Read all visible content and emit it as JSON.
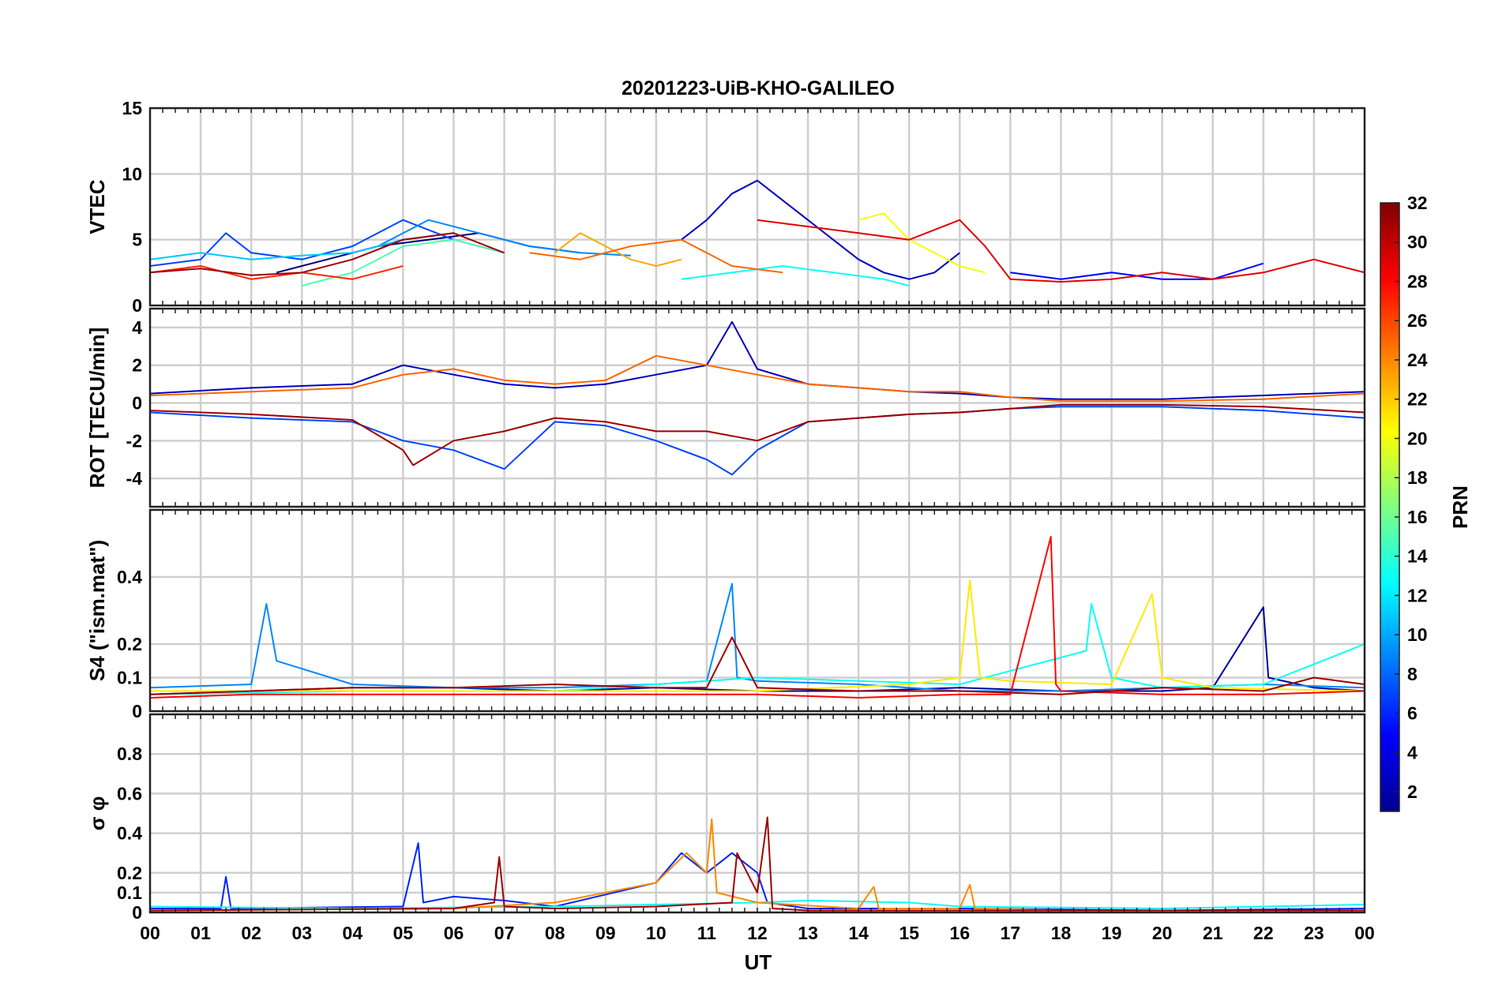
{
  "chart_data": {
    "type": "line",
    "title": "20201223-UiB-KHO-GALILEO",
    "xlabel": "UT",
    "x_ticks": [
      "00",
      "01",
      "02",
      "03",
      "04",
      "05",
      "06",
      "07",
      "08",
      "09",
      "10",
      "11",
      "12",
      "13",
      "14",
      "15",
      "16",
      "17",
      "18",
      "19",
      "20",
      "21",
      "22",
      "23",
      "00"
    ],
    "x_range_hours": [
      0,
      24
    ],
    "grid": true,
    "colorbar": {
      "label": "PRN",
      "range": [
        1,
        32
      ],
      "ticks": [
        "2",
        "4",
        "6",
        "8",
        "10",
        "12",
        "14",
        "16",
        "18",
        "20",
        "22",
        "24",
        "26",
        "28",
        "30",
        "32"
      ],
      "colormap": "jet"
    },
    "panels": [
      {
        "id": "vtec",
        "ylabel": "VTEC",
        "ylim": [
          0,
          15
        ],
        "yticks": [
          0,
          5,
          10,
          15
        ],
        "series": [
          {
            "prn": 1,
            "x": [
              2.5,
              3.5,
              4.5,
              5.5,
              6.5,
              7.5,
              8.5
            ],
            "y": [
              2.5,
              3.5,
              4.5,
              5,
              5.5,
              4.5,
              4
            ]
          },
          {
            "prn": 3,
            "x": [
              10.5,
              11.0,
              11.5,
              12.0,
              12.5,
              13.0,
              13.5,
              14.0,
              14.5,
              15.0,
              15.5,
              16.0
            ],
            "y": [
              5.0,
              6.5,
              8.5,
              9.5,
              8.0,
              6.5,
              5.0,
              3.5,
              2.5,
              2.0,
              2.5,
              4.0
            ]
          },
          {
            "prn": 5,
            "x": [
              17.0,
              18.0,
              19.0,
              20.0,
              21.0,
              22.0
            ],
            "y": [
              2.5,
              2.0,
              2.5,
              2.0,
              2.0,
              3.2
            ]
          },
          {
            "prn": 7,
            "x": [
              0.0,
              1.0,
              1.5,
              2.0,
              3.0,
              4.0,
              5.0,
              6.0,
              7.0
            ],
            "y": [
              3.0,
              3.5,
              5.5,
              4.0,
              3.5,
              4.5,
              6.5,
              5.0,
              4.0
            ]
          },
          {
            "prn": 9,
            "x": [
              4.5,
              5.5,
              6.5,
              7.5,
              8.5,
              9.5
            ],
            "y": [
              4.5,
              6.5,
              5.5,
              4.5,
              4.0,
              3.8
            ]
          },
          {
            "prn": 11,
            "x": [
              0.0,
              1.0,
              2.0,
              3.0,
              4.0,
              5.0,
              6.0
            ],
            "y": [
              3.5,
              4.0,
              3.5,
              3.8,
              4.0,
              5.0,
              5.5
            ]
          },
          {
            "prn": 13,
            "x": [
              10.5,
              11.5,
              12.5,
              13.5,
              14.5,
              15.0
            ],
            "y": [
              2.0,
              2.5,
              3.0,
              2.5,
              2.0,
              1.5
            ]
          },
          {
            "prn": 15,
            "x": [
              3.0,
              4.0,
              5.0,
              6.0,
              7.0
            ],
            "y": [
              1.5,
              2.5,
              4.5,
              5.0,
              4.0
            ]
          },
          {
            "prn": 20,
            "x": [
              14.0,
              14.5,
              15.0,
              15.5,
              16.0,
              16.5
            ],
            "y": [
              6.5,
              7.0,
              5.0,
              4.0,
              3.0,
              2.5
            ]
          },
          {
            "prn": 23,
            "x": [
              8.0,
              8.5,
              9.0,
              9.5,
              10.0,
              10.5
            ],
            "y": [
              4.0,
              5.5,
              4.5,
              3.5,
              3.0,
              3.5
            ]
          },
          {
            "prn": 25,
            "x": [
              7.5,
              8.5,
              9.5,
              10.5,
              11.5,
              12.5
            ],
            "y": [
              4.0,
              3.5,
              4.5,
              5.0,
              3.0,
              2.5
            ]
          },
          {
            "prn": 27,
            "x": [
              0.0,
              1.0,
              2.0,
              3.0,
              4.0,
              5.0
            ],
            "y": [
              2.5,
              3.0,
              2.0,
              2.5,
              2.0,
              3.0
            ]
          },
          {
            "prn": 29,
            "x": [
              12.0,
              13.0,
              14.0,
              15.0,
              16.0,
              16.5,
              17.0,
              18.0,
              19.0,
              20.0,
              21.0,
              22.0,
              23.0,
              24.0
            ],
            "y": [
              6.5,
              6.0,
              5.5,
              5.0,
              6.5,
              4.5,
              2.0,
              1.8,
              2.0,
              2.5,
              2.0,
              2.5,
              3.5,
              2.5
            ]
          },
          {
            "prn": 31,
            "x": [
              0.0,
              1.0,
              2.0,
              3.0,
              4.0,
              5.0,
              6.0,
              7.0
            ],
            "y": [
              2.5,
              2.8,
              2.3,
              2.5,
              3.5,
              5.0,
              5.5,
              4.0
            ]
          }
        ]
      },
      {
        "id": "rot",
        "ylabel": "ROT [TECU/min]",
        "ylim": [
          -5.5,
          5
        ],
        "yticks": [
          -4,
          -2,
          0,
          2,
          4
        ],
        "series": [
          {
            "prn": 3,
            "x": [
              0,
              2,
              4,
              5,
              6,
              7,
              8,
              9,
              10,
              11,
              11.5,
              12,
              13,
              14,
              15,
              16,
              17,
              18,
              20,
              22,
              24
            ],
            "y": [
              0.5,
              0.8,
              1.0,
              2.0,
              1.5,
              1.0,
              0.8,
              1.0,
              1.5,
              2.0,
              4.3,
              1.8,
              1.0,
              0.8,
              0.6,
              0.5,
              0.3,
              0.2,
              0.2,
              0.4,
              0.6
            ]
          },
          {
            "prn": 7,
            "x": [
              0,
              2,
              4,
              5,
              6,
              7,
              8,
              9,
              10,
              11,
              11.5,
              12,
              13,
              14,
              15,
              16,
              17,
              18,
              20,
              22,
              24
            ],
            "y": [
              -0.5,
              -0.8,
              -1.0,
              -2.0,
              -2.5,
              -3.5,
              -1.0,
              -1.2,
              -2.0,
              -3.0,
              -3.8,
              -2.5,
              -1.0,
              -0.8,
              -0.6,
              -0.5,
              -0.3,
              -0.2,
              -0.2,
              -0.4,
              -0.8
            ]
          },
          {
            "prn": 25,
            "x": [
              0,
              2,
              4,
              5,
              6,
              7,
              8,
              9,
              10,
              11,
              12,
              13,
              14,
              15,
              16,
              17,
              18,
              20,
              22,
              24
            ],
            "y": [
              0.4,
              0.6,
              0.8,
              1.5,
              1.8,
              1.2,
              1.0,
              1.2,
              2.5,
              2.0,
              1.5,
              1.0,
              0.8,
              0.6,
              0.6,
              0.3,
              0.1,
              0.1,
              0.2,
              0.5
            ]
          },
          {
            "prn": 31,
            "x": [
              0,
              2,
              4,
              5,
              5.2,
              6,
              7,
              8,
              9,
              10,
              11,
              12,
              13,
              14,
              15,
              16,
              17,
              18,
              20,
              22,
              24
            ],
            "y": [
              -0.4,
              -0.6,
              -0.9,
              -2.5,
              -3.3,
              -2.0,
              -1.5,
              -0.8,
              -1.0,
              -1.5,
              -1.5,
              -2.0,
              -1.0,
              -0.8,
              -0.6,
              -0.5,
              -0.3,
              -0.1,
              -0.1,
              -0.2,
              -0.5
            ]
          }
        ]
      },
      {
        "id": "s4",
        "ylabel": "S4 (\"ism.mat\")",
        "ylim": [
          0,
          0.6
        ],
        "yticks": [
          0,
          0.1,
          0.2,
          0.4
        ],
        "series": [
          {
            "prn": 2,
            "x": [
              0,
              2,
              4,
              6,
              8,
              10,
              12,
              14,
              16,
              18,
              20,
              21,
              22,
              22.1,
              23,
              24
            ],
            "y": [
              0.05,
              0.06,
              0.07,
              0.07,
              0.06,
              0.07,
              0.06,
              0.06,
              0.07,
              0.06,
              0.06,
              0.07,
              0.31,
              0.1,
              0.07,
              0.06
            ]
          },
          {
            "prn": 9,
            "x": [
              0,
              2,
              2.3,
              2.5,
              4,
              6,
              8,
              10,
              11,
              11.5,
              11.6,
              12,
              14,
              16,
              18,
              20,
              22,
              24
            ],
            "y": [
              0.07,
              0.08,
              0.32,
              0.15,
              0.08,
              0.07,
              0.07,
              0.08,
              0.09,
              0.38,
              0.1,
              0.09,
              0.08,
              0.06,
              0.06,
              0.07,
              0.08,
              0.07
            ]
          },
          {
            "prn": 13,
            "x": [
              0,
              4,
              8,
              12,
              16,
              18.5,
              18.6,
              19,
              20,
              22,
              24
            ],
            "y": [
              0.05,
              0.06,
              0.06,
              0.1,
              0.08,
              0.18,
              0.32,
              0.1,
              0.07,
              0.08,
              0.2
            ]
          },
          {
            "prn": 21,
            "x": [
              0,
              4,
              8,
              12,
              15,
              16,
              16.2,
              16.4,
              17,
              19,
              19.8,
              20,
              21,
              24
            ],
            "y": [
              0.06,
              0.06,
              0.06,
              0.06,
              0.08,
              0.1,
              0.39,
              0.1,
              0.09,
              0.08,
              0.35,
              0.1,
              0.07,
              0.06
            ]
          },
          {
            "prn": 28,
            "x": [
              0,
              2,
              4,
              6,
              8,
              10,
              12,
              14,
              16,
              17,
              17.8,
              17.9,
              18,
              20,
              22,
              24
            ],
            "y": [
              0.04,
              0.05,
              0.05,
              0.05,
              0.05,
              0.05,
              0.05,
              0.04,
              0.05,
              0.05,
              0.52,
              0.08,
              0.06,
              0.05,
              0.05,
              0.06
            ]
          },
          {
            "prn": 31,
            "x": [
              0,
              2,
              4,
              6,
              8,
              10,
              11,
              11.5,
              12,
              14,
              16,
              18,
              20,
              22,
              23,
              24
            ],
            "y": [
              0.05,
              0.06,
              0.07,
              0.07,
              0.08,
              0.07,
              0.07,
              0.22,
              0.07,
              0.06,
              0.06,
              0.05,
              0.07,
              0.06,
              0.1,
              0.08
            ]
          }
        ]
      },
      {
        "id": "sigma_phi",
        "ylabel": "σ φ",
        "ylim": [
          0,
          1
        ],
        "yticks": [
          0,
          0.1,
          0.2,
          0.4,
          0.6,
          0.8
        ],
        "series": [
          {
            "prn": 6,
            "x": [
              0,
              1.4,
              1.5,
              1.6,
              5,
              5.3,
              5.4,
              6,
              7,
              8,
              10,
              10.5,
              11,
              11.5,
              12,
              12.2,
              13,
              16,
              20,
              24
            ],
            "y": [
              0.02,
              0.02,
              0.18,
              0.02,
              0.03,
              0.35,
              0.05,
              0.08,
              0.06,
              0.03,
              0.15,
              0.3,
              0.2,
              0.3,
              0.2,
              0.05,
              0.02,
              0.02,
              0.01,
              0.02
            ]
          },
          {
            "prn": 13,
            "x": [
              0,
              4,
              8,
              12,
              13,
              15,
              16,
              20,
              24
            ],
            "y": [
              0.03,
              0.02,
              0.03,
              0.05,
              0.06,
              0.05,
              0.03,
              0.02,
              0.04
            ]
          },
          {
            "prn": 24,
            "x": [
              0,
              6,
              8,
              9,
              10,
              10.6,
              11,
              11.1,
              11.2,
              12,
              14,
              14.3,
              14.4,
              16,
              16.2,
              16.3,
              18,
              24
            ],
            "y": [
              0.01,
              0.02,
              0.05,
              0.1,
              0.15,
              0.3,
              0.2,
              0.47,
              0.1,
              0.05,
              0.02,
              0.13,
              0.02,
              0.02,
              0.14,
              0.02,
              0.01,
              0.01
            ]
          },
          {
            "prn": 31,
            "x": [
              0,
              6,
              6.8,
              6.9,
              7,
              8,
              10,
              11.5,
              11.6,
              12,
              12.2,
              12.3,
              13,
              16,
              20,
              24
            ],
            "y": [
              0.01,
              0.02,
              0.05,
              0.28,
              0.03,
              0.02,
              0.03,
              0.05,
              0.3,
              0.1,
              0.48,
              0.02,
              0.01,
              0.01,
              0.01,
              0.01
            ]
          }
        ]
      }
    ]
  }
}
